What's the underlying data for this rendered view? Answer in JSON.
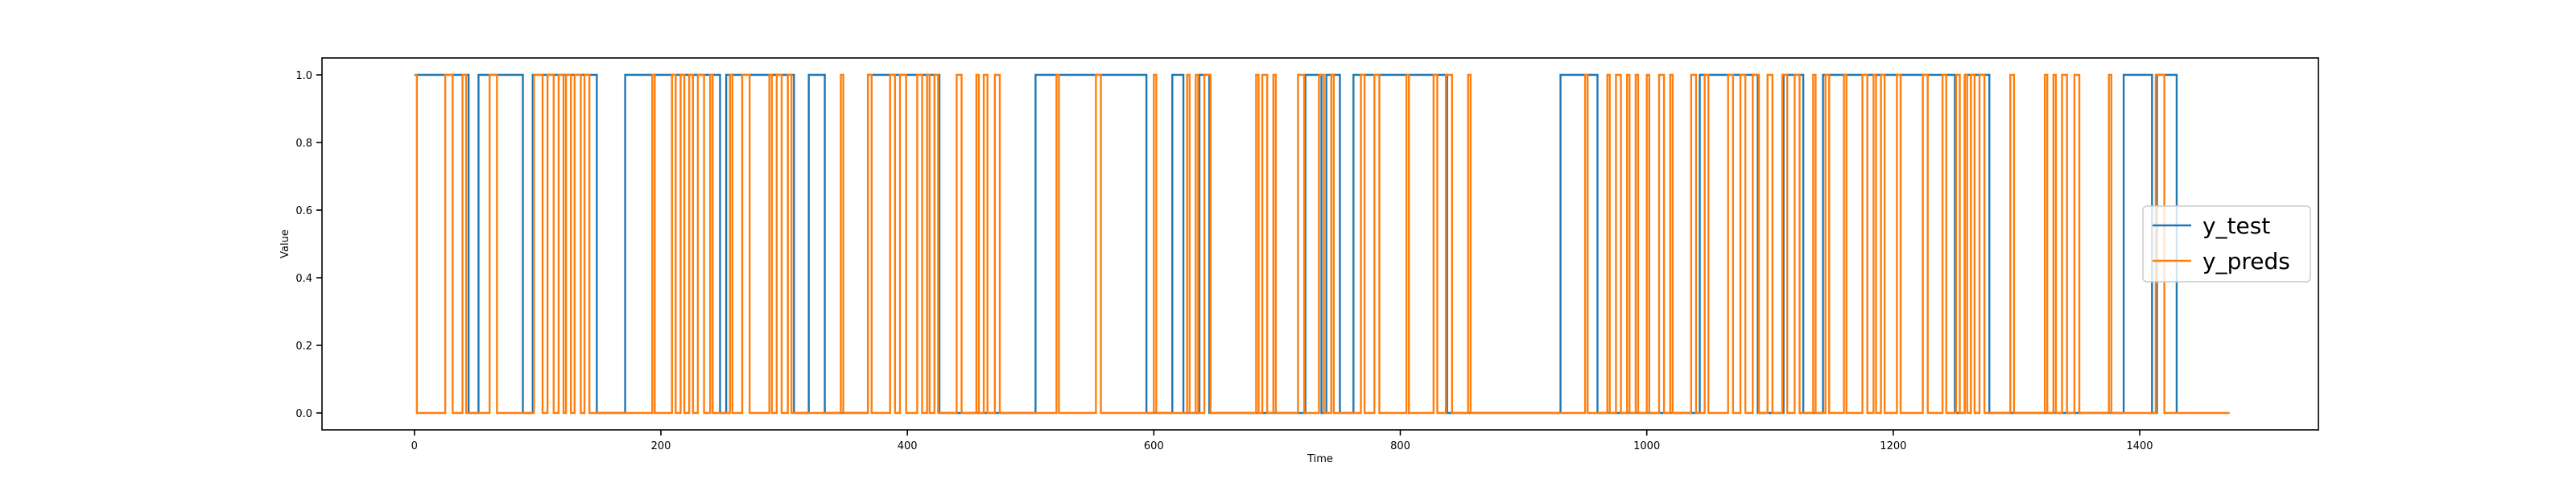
{
  "chart_data": {
    "type": "line",
    "step": "post",
    "title": "",
    "xlabel": "Time",
    "ylabel": "Value",
    "xlim": [
      -75,
      1545
    ],
    "ylim": [
      -0.05,
      1.05
    ],
    "xticks": [
      0,
      200,
      400,
      600,
      800,
      1000,
      1200,
      1400
    ],
    "yticks": [
      0.0,
      0.2,
      0.4,
      0.6,
      0.8,
      1.0
    ],
    "ytick_labels": [
      "0.0",
      "0.2",
      "0.4",
      "0.6",
      "0.8",
      "1.0"
    ],
    "legend_position": "center-right",
    "series": [
      {
        "name": "y_test",
        "color": "#1f77b4",
        "x_max": 1430,
        "transitions": [
          [
            0,
            1
          ],
          [
            44,
            0
          ],
          [
            52,
            1
          ],
          [
            88,
            0
          ],
          [
            96,
            1
          ],
          [
            148,
            0
          ],
          [
            171,
            1
          ],
          [
            248,
            0
          ],
          [
            253,
            1
          ],
          [
            308,
            0
          ],
          [
            320,
            1
          ],
          [
            333,
            0
          ],
          [
            368,
            1
          ],
          [
            426,
            0
          ],
          [
            504,
            1
          ],
          [
            594,
            0
          ],
          [
            615,
            1
          ],
          [
            624,
            0
          ],
          [
            637,
            1
          ],
          [
            645,
            0
          ],
          [
            723,
            1
          ],
          [
            736,
            0
          ],
          [
            740,
            1
          ],
          [
            751,
            0
          ],
          [
            762,
            1
          ],
          [
            838,
            0
          ],
          [
            930,
            1
          ],
          [
            960,
            0
          ],
          [
            1043,
            1
          ],
          [
            1090,
            0
          ],
          [
            1111,
            1
          ],
          [
            1127,
            0
          ],
          [
            1143,
            1
          ],
          [
            1250,
            0
          ],
          [
            1258,
            1
          ],
          [
            1278,
            0
          ],
          [
            1387,
            1
          ],
          [
            1410,
            0
          ],
          [
            1414,
            1
          ],
          [
            1430,
            0
          ]
        ]
      },
      {
        "name": "y_preds",
        "color": "#ff7f0e",
        "x_max": 1473,
        "transitions": [
          [
            0,
            1
          ],
          [
            2,
            0
          ],
          [
            25,
            1
          ],
          [
            31,
            0
          ],
          [
            39,
            1
          ],
          [
            42,
            0
          ],
          [
            61,
            1
          ],
          [
            67,
            0
          ],
          [
            97,
            1
          ],
          [
            104,
            0
          ],
          [
            108,
            1
          ],
          [
            113,
            0
          ],
          [
            117,
            1
          ],
          [
            121,
            0
          ],
          [
            123,
            1
          ],
          [
            127,
            0
          ],
          [
            130,
            1
          ],
          [
            135,
            0
          ],
          [
            138,
            1
          ],
          [
            142,
            0
          ],
          [
            193,
            1
          ],
          [
            195,
            0
          ],
          [
            209,
            1
          ],
          [
            212,
            0
          ],
          [
            216,
            1
          ],
          [
            219,
            0
          ],
          [
            223,
            1
          ],
          [
            226,
            0
          ],
          [
            230,
            1
          ],
          [
            235,
            0
          ],
          [
            240,
            1
          ],
          [
            242,
            0
          ],
          [
            256,
            1
          ],
          [
            258,
            0
          ],
          [
            266,
            1
          ],
          [
            272,
            0
          ],
          [
            288,
            1
          ],
          [
            290,
            0
          ],
          [
            294,
            1
          ],
          [
            298,
            0
          ],
          [
            303,
            1
          ],
          [
            306,
            0
          ],
          [
            346,
            1
          ],
          [
            348,
            0
          ],
          [
            368,
            1
          ],
          [
            371,
            0
          ],
          [
            386,
            1
          ],
          [
            390,
            0
          ],
          [
            394,
            1
          ],
          [
            399,
            0
          ],
          [
            408,
            1
          ],
          [
            412,
            0
          ],
          [
            416,
            1
          ],
          [
            418,
            0
          ],
          [
            422,
            1
          ],
          [
            425,
            0
          ],
          [
            440,
            1
          ],
          [
            444,
            0
          ],
          [
            456,
            1
          ],
          [
            458,
            0
          ],
          [
            462,
            1
          ],
          [
            465,
            0
          ],
          [
            471,
            1
          ],
          [
            475,
            0
          ],
          [
            521,
            1
          ],
          [
            523,
            0
          ],
          [
            553,
            1
          ],
          [
            557,
            0
          ],
          [
            600,
            1
          ],
          [
            602,
            0
          ],
          [
            627,
            1
          ],
          [
            629,
            0
          ],
          [
            634,
            1
          ],
          [
            636,
            0
          ],
          [
            641,
            1
          ],
          [
            646,
            0
          ],
          [
            683,
            1
          ],
          [
            685,
            0
          ],
          [
            688,
            1
          ],
          [
            692,
            0
          ],
          [
            697,
            1
          ],
          [
            699,
            0
          ],
          [
            717,
            1
          ],
          [
            722,
            0
          ],
          [
            734,
            1
          ],
          [
            738,
            0
          ],
          [
            744,
            1
          ],
          [
            746,
            0
          ],
          [
            768,
            1
          ],
          [
            771,
            0
          ],
          [
            779,
            1
          ],
          [
            783,
            0
          ],
          [
            805,
            1
          ],
          [
            807,
            0
          ],
          [
            827,
            1
          ],
          [
            830,
            0
          ],
          [
            837,
            1
          ],
          [
            842,
            0
          ],
          [
            855,
            1
          ],
          [
            857,
            0
          ],
          [
            950,
            1
          ],
          [
            952,
            0
          ],
          [
            968,
            1
          ],
          [
            970,
            0
          ],
          [
            975,
            1
          ],
          [
            979,
            0
          ],
          [
            984,
            1
          ],
          [
            986,
            0
          ],
          [
            991,
            1
          ],
          [
            993,
            0
          ],
          [
            1000,
            1
          ],
          [
            1002,
            0
          ],
          [
            1010,
            1
          ],
          [
            1014,
            0
          ],
          [
            1019,
            1
          ],
          [
            1021,
            0
          ],
          [
            1036,
            1
          ],
          [
            1040,
            0
          ],
          [
            1047,
            1
          ],
          [
            1050,
            0
          ],
          [
            1066,
            1
          ],
          [
            1070,
            0
          ],
          [
            1076,
            1
          ],
          [
            1080,
            0
          ],
          [
            1086,
            1
          ],
          [
            1091,
            0
          ],
          [
            1098,
            1
          ],
          [
            1102,
            0
          ],
          [
            1110,
            1
          ],
          [
            1114,
            0
          ],
          [
            1120,
            1
          ],
          [
            1124,
            0
          ],
          [
            1135,
            1
          ],
          [
            1137,
            0
          ],
          [
            1145,
            1
          ],
          [
            1148,
            0
          ],
          [
            1160,
            1
          ],
          [
            1162,
            0
          ],
          [
            1175,
            1
          ],
          [
            1179,
            0
          ],
          [
            1184,
            1
          ],
          [
            1186,
            0
          ],
          [
            1190,
            1
          ],
          [
            1193,
            0
          ],
          [
            1203,
            1
          ],
          [
            1206,
            0
          ],
          [
            1224,
            1
          ],
          [
            1228,
            0
          ],
          [
            1240,
            1
          ],
          [
            1243,
            0
          ],
          [
            1251,
            1
          ],
          [
            1254,
            0
          ],
          [
            1258,
            1
          ],
          [
            1260,
            0
          ],
          [
            1263,
            1
          ],
          [
            1266,
            0
          ],
          [
            1270,
            1
          ],
          [
            1274,
            0
          ],
          [
            1295,
            1
          ],
          [
            1298,
            0
          ],
          [
            1323,
            1
          ],
          [
            1325,
            0
          ],
          [
            1330,
            1
          ],
          [
            1332,
            0
          ],
          [
            1337,
            1
          ],
          [
            1341,
            0
          ],
          [
            1347,
            1
          ],
          [
            1351,
            0
          ],
          [
            1375,
            1
          ],
          [
            1377,
            0
          ],
          [
            1413,
            1
          ],
          [
            1420,
            0
          ]
        ]
      }
    ]
  }
}
